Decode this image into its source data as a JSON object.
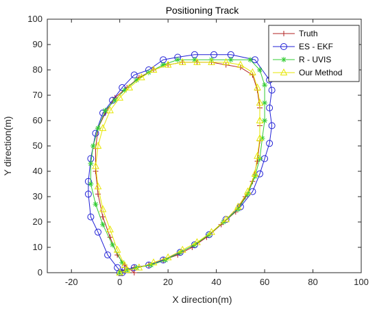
{
  "chart_data": {
    "type": "line",
    "title": "Positioning Track",
    "xlabel": "X direction(m)",
    "ylabel": "Y direction(m)",
    "xlim": [
      -30,
      100
    ],
    "ylim": [
      0,
      100
    ],
    "xticks": [
      -20,
      0,
      20,
      40,
      60,
      80,
      100
    ],
    "yticks": [
      0,
      10,
      20,
      30,
      40,
      50,
      60,
      70,
      80,
      90,
      100
    ],
    "grid": false,
    "legend_position": "top-right",
    "series": [
      {
        "name": "Truth",
        "color": "#b22222",
        "marker": "plus",
        "x": [
          0,
          2,
          6,
          12,
          18,
          24,
          30,
          36,
          42,
          48,
          52,
          55,
          57,
          58,
          58,
          58,
          57,
          55,
          50,
          44,
          38,
          32,
          26,
          20,
          14,
          8,
          3,
          -2,
          -6,
          -9,
          -10,
          -10,
          -9,
          -7,
          -4,
          -1,
          2,
          6
        ],
        "y": [
          0,
          1,
          2,
          3,
          5,
          7,
          10,
          14,
          19,
          24,
          30,
          36,
          44,
          52,
          58,
          65,
          72,
          78,
          81,
          82,
          83,
          83,
          83,
          82,
          80,
          77,
          73,
          69,
          63,
          57,
          49,
          40,
          31,
          22,
          14,
          7,
          3,
          0
        ]
      },
      {
        "name": "ES - EKF",
        "color": "#1f1fd6",
        "marker": "circle",
        "x": [
          0,
          2,
          6,
          12,
          18,
          25,
          31,
          37,
          44,
          50,
          55,
          58,
          60,
          62,
          63,
          62,
          63,
          62,
          56,
          46,
          39,
          31,
          24,
          18,
          12,
          6,
          1,
          -3,
          -7,
          -10,
          -12,
          -13,
          -13,
          -12,
          -9,
          -5,
          -1,
          1
        ],
        "y": [
          0,
          1,
          2,
          3,
          5,
          8,
          11,
          15,
          21,
          26,
          32,
          39,
          45,
          51,
          58,
          65,
          72,
          76,
          84,
          86,
          86,
          86,
          85,
          84,
          80,
          78,
          73,
          68,
          63,
          55,
          45,
          36,
          31,
          22,
          16,
          7,
          2,
          0
        ]
      },
      {
        "name": "R - UVIS",
        "color": "#33cc33",
        "marker": "star",
        "x": [
          0,
          3,
          7,
          13,
          19,
          25,
          31,
          37,
          43,
          49,
          53,
          56,
          58,
          59,
          60,
          60,
          60,
          58,
          54,
          46,
          38,
          31,
          24,
          18,
          12,
          7,
          2,
          -2,
          -6,
          -9,
          -11,
          -12,
          -12,
          -10,
          -7,
          -3,
          1
        ],
        "y": [
          0,
          1,
          2,
          3,
          5,
          8,
          11,
          15,
          20,
          25,
          31,
          38,
          45,
          53,
          60,
          67,
          74,
          80,
          84,
          84,
          84,
          84,
          84,
          82,
          79,
          76,
          72,
          68,
          64,
          57,
          50,
          43,
          35,
          27,
          19,
          11,
          4
        ]
      },
      {
        "name": "Our Method",
        "color": "#e6e600",
        "marker": "triangle",
        "x": [
          0,
          3,
          8,
          14,
          20,
          26,
          32,
          38,
          44,
          49,
          53,
          56,
          57,
          58,
          58,
          58,
          57,
          55,
          50,
          44,
          38,
          32,
          26,
          20,
          14,
          9,
          4,
          0,
          -4,
          -7,
          -9,
          -10,
          -9,
          -7,
          -4,
          -1,
          2
        ],
        "y": [
          0,
          1,
          2,
          4,
          6,
          9,
          12,
          16,
          21,
          26,
          32,
          39,
          46,
          53,
          60,
          67,
          73,
          79,
          82,
          83,
          83,
          83,
          83,
          82,
          80,
          77,
          73,
          69,
          64,
          57,
          50,
          42,
          34,
          25,
          17,
          9,
          3
        ]
      }
    ]
  }
}
